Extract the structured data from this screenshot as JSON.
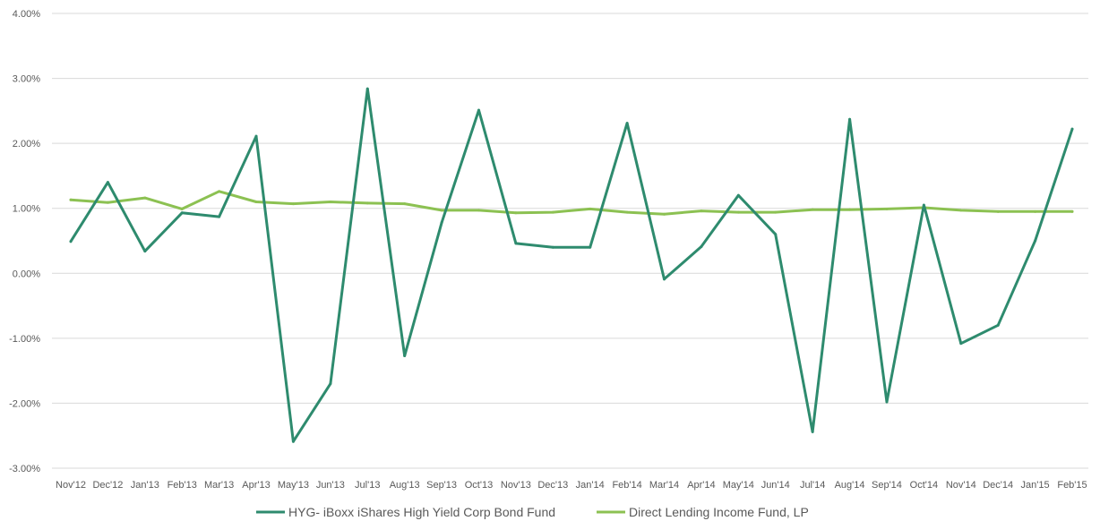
{
  "chart_data": {
    "type": "line",
    "title": "",
    "xlabel": "",
    "ylabel": "",
    "ylim": [
      -0.03,
      0.04
    ],
    "y_ticks": [
      "-3.00%",
      "-2.00%",
      "-1.00%",
      "0.00%",
      "1.00%",
      "2.00%",
      "3.00%",
      "4.00%"
    ],
    "y_tick_values": [
      -0.03,
      -0.02,
      -0.01,
      0,
      0.01,
      0.02,
      0.03,
      0.04
    ],
    "grid": true,
    "legend_position": "bottom",
    "categories": [
      "Nov'12",
      "Dec'12",
      "Jan'13",
      "Feb'13",
      "Mar'13",
      "Apr'13",
      "May'13",
      "Jun'13",
      "Jul'13",
      "Aug'13",
      "Sep'13",
      "Oct'13",
      "Nov'13",
      "Dec'13",
      "Jan'14",
      "Feb'14",
      "Mar'14",
      "Apr'14",
      "May'14",
      "Jun'14",
      "Jul'14",
      "Aug'14",
      "Sep'14",
      "Oct'14",
      "Nov'14",
      "Dec'14",
      "Jan'15",
      "Feb'15"
    ],
    "series": [
      {
        "name": "HYG- iBoxx iShares High Yield Corp Bond Fund",
        "color": "#2e8b6e",
        "values": [
          0.0049,
          0.014,
          0.0034,
          0.0093,
          0.0087,
          0.0211,
          -0.0259,
          -0.017,
          0.0284,
          -0.0127,
          0.0078,
          0.0251,
          0.0046,
          0.004,
          0.004,
          0.0231,
          -0.0009,
          0.0041,
          0.012,
          0.006,
          -0.0244,
          0.0237,
          -0.0198,
          0.0105,
          -0.0108,
          -0.008,
          0.005,
          0.0222
        ]
      },
      {
        "name": "Direct Lending Income Fund, LP",
        "color": "#8cc152",
        "values": [
          0.0113,
          0.0109,
          0.0116,
          0.0099,
          0.0126,
          0.011,
          0.0107,
          0.011,
          0.0108,
          0.0107,
          0.0097,
          0.0097,
          0.0093,
          0.0094,
          0.0099,
          0.0094,
          0.0091,
          0.0096,
          0.0094,
          0.0094,
          0.0098,
          0.0098,
          0.0099,
          0.0101,
          0.0097,
          0.0095,
          0.0095,
          0.0095
        ]
      }
    ]
  }
}
